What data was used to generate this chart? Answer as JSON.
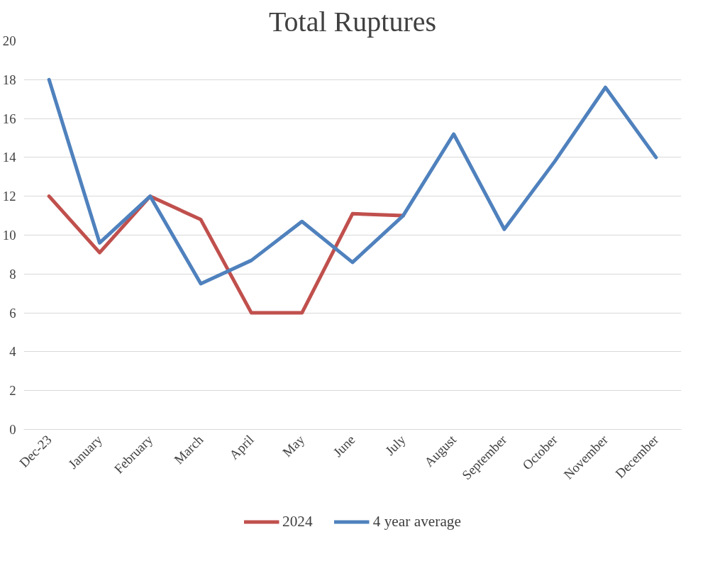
{
  "chart_data": {
    "type": "line",
    "title": "Total Ruptures",
    "categories": [
      "Dec-23",
      "January",
      "February",
      "March",
      "April",
      "May",
      "June",
      "July",
      "August",
      "September",
      "October",
      "November",
      "December"
    ],
    "series": [
      {
        "name": "2024",
        "color": "#c0504d",
        "values": [
          12,
          9.1,
          12,
          10.8,
          6,
          6,
          11.1,
          11,
          null,
          null,
          null,
          null,
          null
        ]
      },
      {
        "name": "4 year average",
        "color": "#4f81bd",
        "values": [
          18,
          9.6,
          12,
          7.5,
          8.7,
          10.7,
          8.6,
          11,
          15.2,
          10.3,
          13.8,
          17.6,
          14
        ]
      }
    ],
    "ylim": [
      0,
      20
    ],
    "yticks": [
      0,
      2,
      4,
      6,
      8,
      10,
      12,
      14,
      16,
      18,
      20
    ],
    "grid": "y",
    "legend": "bottom",
    "marker": "none",
    "line_style": "solid"
  }
}
